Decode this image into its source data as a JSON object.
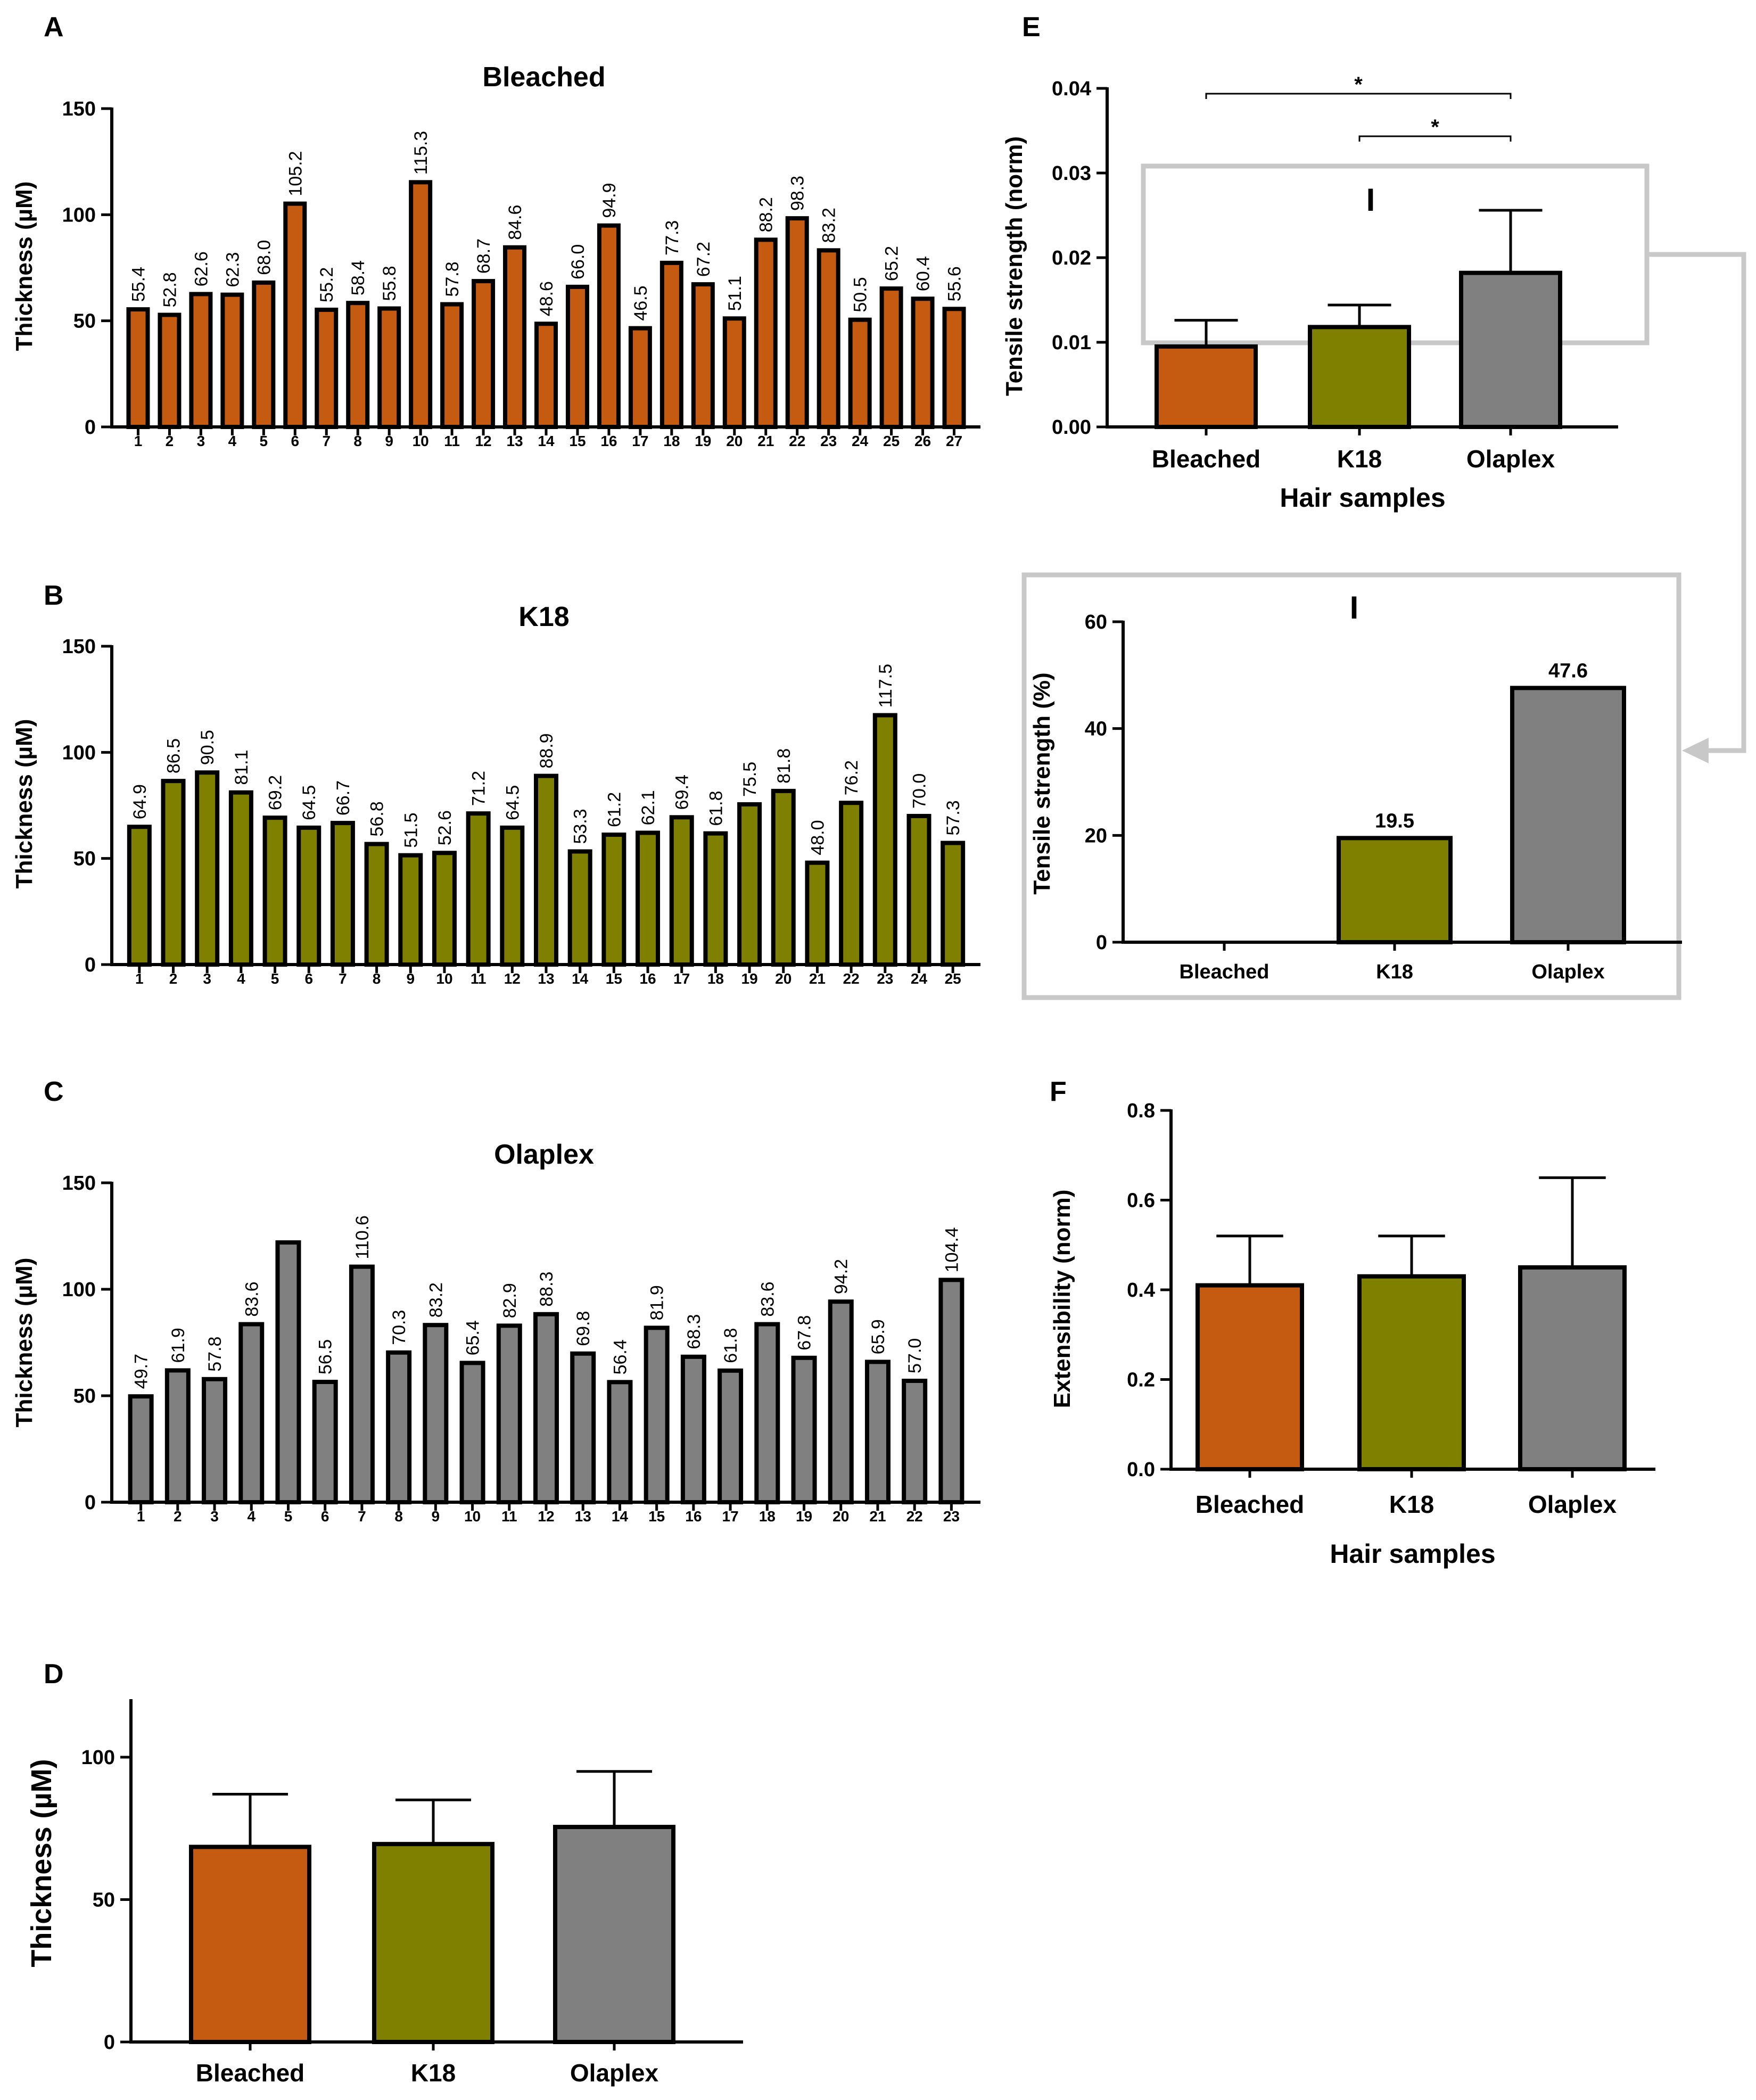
{
  "chart_data": [
    {
      "id": "A",
      "type": "bar",
      "title": "Bleached",
      "ylabel": "Thickness  (µM)",
      "ylim": [
        0,
        150
      ],
      "yticks": [
        0,
        50,
        100,
        150
      ],
      "color": "#C55A11",
      "categories": [
        "1",
        "2",
        "3",
        "4",
        "5",
        "6",
        "7",
        "8",
        "9",
        "10",
        "11",
        "12",
        "13",
        "14",
        "15",
        "16",
        "17",
        "18",
        "19",
        "20",
        "21",
        "22",
        "23",
        "24",
        "25",
        "26",
        "27"
      ],
      "values": [
        55.4,
        52.8,
        62.6,
        62.3,
        68.0,
        105.2,
        55.2,
        58.4,
        55.8,
        115.3,
        57.8,
        68.7,
        84.6,
        48.6,
        66.0,
        94.9,
        46.5,
        77.3,
        67.2,
        51.1,
        88.2,
        98.3,
        83.2,
        50.5,
        65.2,
        60.4,
        55.6
      ],
      "value_labels": [
        "55.4",
        "52.8",
        "62.6",
        "62.3",
        "68.0",
        "105.2",
        "55.2",
        "58.4",
        "55.8",
        "115.3",
        "57.8",
        "68.7",
        "84.6",
        "48.6",
        "66.0",
        "94.9",
        "46.5",
        "77.3",
        "67.2",
        "51.1",
        "88.2",
        "98.3",
        "83.2",
        "50.5",
        "65.2",
        "60.4",
        "55.6"
      ]
    },
    {
      "id": "B",
      "type": "bar",
      "title": "K18",
      "ylabel": "Thickness  (µM)",
      "ylim": [
        0,
        150
      ],
      "yticks": [
        0,
        50,
        100,
        150
      ],
      "color": "#7F7F00",
      "categories": [
        "1",
        "2",
        "3",
        "4",
        "5",
        "6",
        "7",
        "8",
        "9",
        "10",
        "11",
        "12",
        "13",
        "14",
        "15",
        "16",
        "17",
        "18",
        "19",
        "20",
        "21",
        "22",
        "23",
        "24",
        "25"
      ],
      "values": [
        64.9,
        86.5,
        90.5,
        81.1,
        69.2,
        64.5,
        66.7,
        56.8,
        51.5,
        52.6,
        71.2,
        64.5,
        88.9,
        53.3,
        61.2,
        62.1,
        69.4,
        61.8,
        75.5,
        81.8,
        48.0,
        76.2,
        117.5,
        70.0,
        57.3
      ],
      "value_labels": [
        "64.9",
        "86.5",
        "90.5",
        "81.1",
        "69.2",
        "64.5",
        "66.7",
        "56.8",
        "51.5",
        "52.6",
        "71.2",
        "64.5",
        "88.9",
        "53.3",
        "61.2",
        "62.1",
        "69.4",
        "61.8",
        "75.5",
        "81.8",
        "48.0",
        "76.2",
        "117.5",
        "70.0",
        "57.3"
      ]
    },
    {
      "id": "C",
      "type": "bar",
      "title": "Olaplex",
      "ylabel": "Thickness  (µM)",
      "ylim": [
        0,
        150
      ],
      "yticks": [
        0,
        50,
        100,
        150
      ],
      "color": "#808080",
      "categories": [
        "1",
        "2",
        "3",
        "4",
        "5",
        "6",
        "7",
        "8",
        "9",
        "10",
        "11",
        "12",
        "13",
        "14",
        "15",
        "16",
        "17",
        "18",
        "19",
        "20",
        "21",
        "22",
        "23"
      ],
      "values": [
        49.7,
        61.9,
        57.8,
        83.6,
        122.0,
        56.5,
        110.6,
        70.3,
        83.2,
        65.4,
        82.9,
        88.3,
        69.8,
        56.4,
        81.9,
        68.3,
        61.8,
        83.6,
        67.8,
        94.2,
        65.9,
        57.0,
        104.4
      ],
      "value_labels": [
        "49.7",
        "61.9",
        "57.8",
        "83.6",
        "",
        "56.5",
        "110.6",
        "70.3",
        "83.2",
        "65.4",
        "82.9",
        "88.3",
        "69.8",
        "56.4",
        "81.9",
        "68.3",
        "61.8",
        "83.6",
        "67.8",
        "94.2",
        "65.9",
        "57.0",
        "104.4"
      ]
    },
    {
      "id": "D",
      "type": "bar",
      "title": "",
      "ylabel": "Thickness  (µM)",
      "ylim": [
        0,
        120
      ],
      "yticks": [
        0,
        50,
        100
      ],
      "categories": [
        "Bleached",
        "K18",
        "Olaplex"
      ],
      "values": [
        68.5,
        69.5,
        75.5
      ],
      "errors": [
        18.5,
        15.5,
        19.5
      ],
      "colors": [
        "#C55A11",
        "#7F7F00",
        "#808080"
      ]
    },
    {
      "id": "E",
      "type": "bar",
      "title": "",
      "ylabel": "Tensile strength (norm)",
      "xlabel": "Hair samples",
      "ylim": [
        0,
        0.04
      ],
      "yticks": [
        "0.00",
        "0.01",
        "0.02",
        "0.03",
        "0.04"
      ],
      "ytick_values": [
        0,
        0.01,
        0.02,
        0.03,
        0.04
      ],
      "categories": [
        "Bleached",
        "K18",
        "Olaplex"
      ],
      "values": [
        0.0095,
        0.0118,
        0.0182
      ],
      "errors": [
        0.0031,
        0.0026,
        0.0074
      ],
      "colors": [
        "#C55A11",
        "#7F7F00",
        "#808080"
      ],
      "significance": [
        {
          "from": "Bleached",
          "to": "Olaplex",
          "label": "*"
        },
        {
          "from": "K18",
          "to": "Olaplex",
          "label": "*"
        }
      ],
      "inset_label": "I"
    },
    {
      "id": "E-inset",
      "type": "bar",
      "title": "I",
      "ylabel": "Tensile strength (%)",
      "ylim": [
        0,
        60
      ],
      "yticks": [
        0,
        20,
        40,
        60
      ],
      "categories": [
        "Bleached",
        "K18",
        "Olaplex"
      ],
      "values": [
        0,
        19.5,
        47.6
      ],
      "value_labels": [
        "",
        "19.5",
        "47.6"
      ],
      "colors": [
        "#C55A11",
        "#7F7F00",
        "#808080"
      ]
    },
    {
      "id": "F",
      "type": "bar",
      "title": "",
      "ylabel": "Extensibility (norm)",
      "xlabel": "Hair samples",
      "ylim": [
        0,
        0.8
      ],
      "yticks": [
        "0.0",
        "0.2",
        "0.4",
        "0.6",
        "0.8"
      ],
      "ytick_values": [
        0,
        0.2,
        0.4,
        0.6,
        0.8
      ],
      "categories": [
        "Bleached",
        "K18",
        "Olaplex"
      ],
      "values": [
        0.41,
        0.43,
        0.45
      ],
      "errors": [
        0.11,
        0.09,
        0.2
      ],
      "colors": [
        "#C55A11",
        "#7F7F00",
        "#808080"
      ]
    }
  ]
}
